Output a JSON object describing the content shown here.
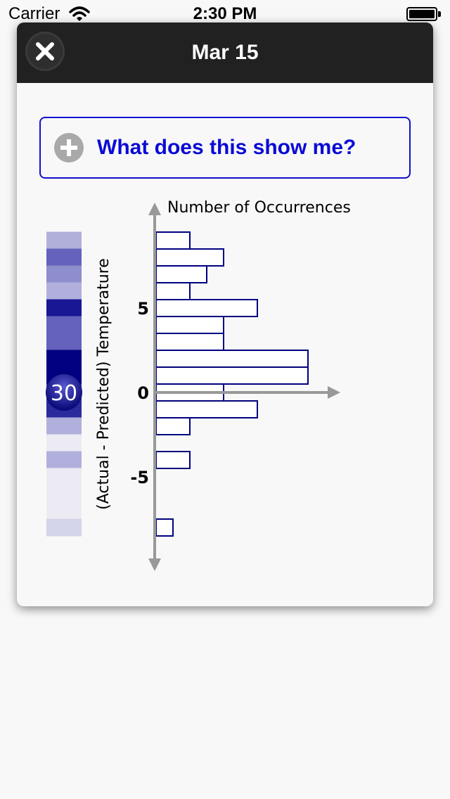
{
  "status_bar": {
    "carrier": "Carrier",
    "time": "2:30 PM",
    "wifi_icon": "wifi-icon",
    "battery_icon": "battery-icon"
  },
  "header": {
    "title": "Mar 15",
    "close_icon": "close-icon"
  },
  "help": {
    "label": "What does this show me?",
    "icon": "plus-circle-icon"
  },
  "colors": {
    "header_bg": "#212121",
    "accent": "#0a0ad6",
    "bar_stroke": "#000080",
    "axis": "#999999"
  },
  "chart_data": {
    "type": "bar",
    "orientation": "horizontal",
    "xlabel": "Number of Occurrences",
    "ylabel": "(Actual - Predicted) Temperature",
    "y_ticks": [
      {
        "value": 5,
        "label": "5"
      },
      {
        "value": 0,
        "label": "0"
      },
      {
        "value": -5,
        "label": "-5"
      }
    ],
    "ylim": [
      -10,
      10
    ],
    "bins": [
      {
        "y": 9,
        "count": 2
      },
      {
        "y": 8,
        "count": 4
      },
      {
        "y": 7,
        "count": 3
      },
      {
        "y": 6,
        "count": 2
      },
      {
        "y": 5,
        "count": 6
      },
      {
        "y": 4,
        "count": 4
      },
      {
        "y": 3,
        "count": 4
      },
      {
        "y": 2,
        "count": 9
      },
      {
        "y": 1,
        "count": 9
      },
      {
        "y": 0,
        "count": 4
      },
      {
        "y": -1,
        "count": 6
      },
      {
        "y": -2,
        "count": 2
      },
      {
        "y": -3,
        "count": 0
      },
      {
        "y": -4,
        "count": 2
      },
      {
        "y": -5,
        "count": 0
      },
      {
        "y": -6,
        "count": 0
      },
      {
        "y": -7,
        "count": 0
      },
      {
        "y": -8,
        "count": 1
      }
    ],
    "heat_strip": [
      {
        "y": 9,
        "color": "#b1b0dc"
      },
      {
        "y": 8,
        "color": "#6462bc"
      },
      {
        "y": 7,
        "color": "#8e8dcd"
      },
      {
        "y": 6,
        "color": "#b1b0dc"
      },
      {
        "y": 5,
        "color": "#191793"
      },
      {
        "y": 4,
        "color": "#6462bc"
      },
      {
        "y": 3,
        "color": "#6462bc"
      },
      {
        "y": 2,
        "color": "#000080"
      },
      {
        "y": 1,
        "color": "#000080"
      },
      {
        "y": 0,
        "color": "#2a2a9c"
      },
      {
        "y": -1,
        "color": "#2a2a9c"
      },
      {
        "y": -2,
        "color": "#b1b0dc"
      },
      {
        "y": -3,
        "color": "#ecebf3"
      },
      {
        "y": -4,
        "color": "#b1b0dc"
      },
      {
        "y": -5,
        "color": "#ecebf3"
      },
      {
        "y": -6,
        "color": "#ecebf3"
      },
      {
        "y": -7,
        "color": "#ecebf3"
      },
      {
        "y": -8,
        "color": "#d4d4ea"
      }
    ],
    "marker": {
      "y": 0,
      "label": "30"
    }
  }
}
